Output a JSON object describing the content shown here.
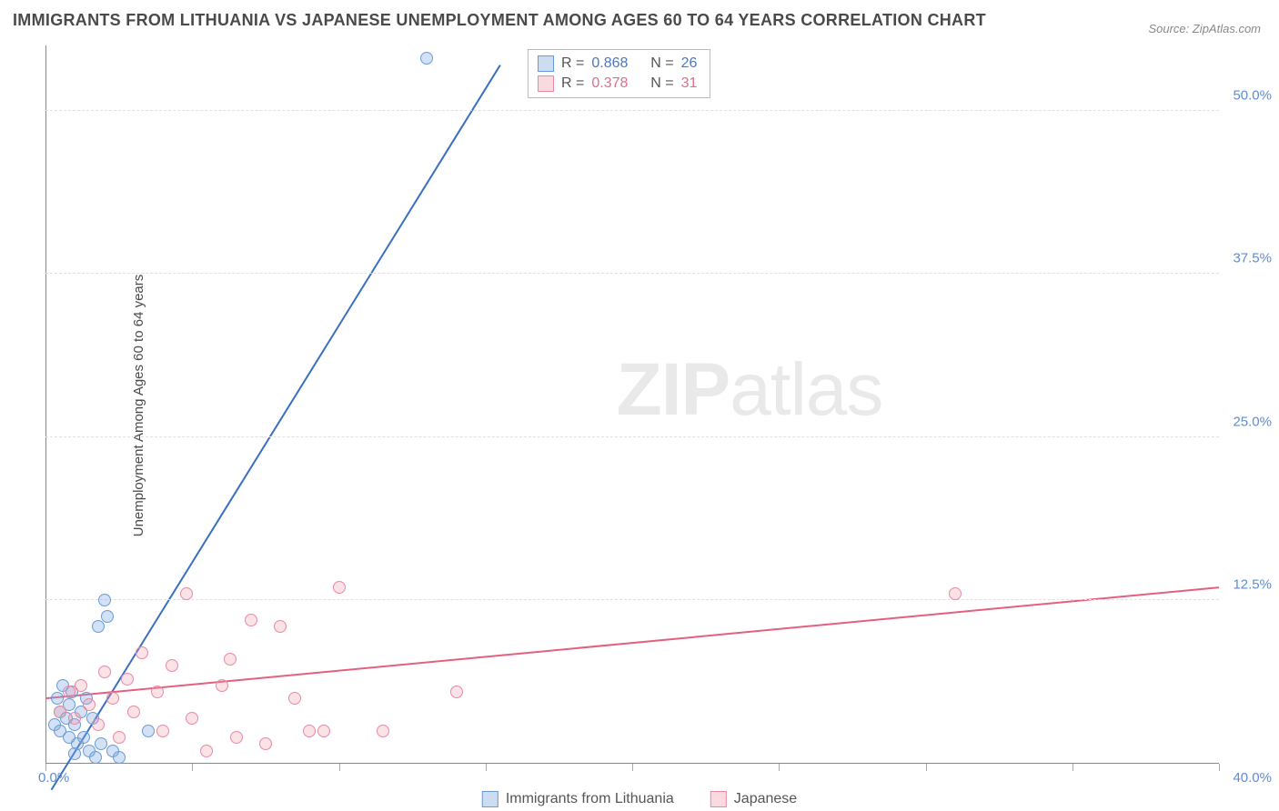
{
  "title": "IMMIGRANTS FROM LITHUANIA VS JAPANESE UNEMPLOYMENT AMONG AGES 60 TO 64 YEARS CORRELATION CHART",
  "source": "Source: ZipAtlas.com",
  "yaxis_label": "Unemployment Among Ages 60 to 64 years",
  "watermark_bold": "ZIP",
  "watermark_rest": "atlas",
  "chart": {
    "type": "scatter",
    "xlim": [
      0,
      40
    ],
    "ylim": [
      0,
      55
    ],
    "y_ticks": [
      12.5,
      25.0,
      37.5,
      50.0
    ],
    "y_tick_labels": [
      "12.5%",
      "25.0%",
      "37.5%",
      "50.0%"
    ],
    "x_ticks": [
      0,
      5,
      10,
      15,
      20,
      25,
      30,
      35,
      40
    ],
    "x_origin_label": "0.0%",
    "x_end_label": "40.0%",
    "background_color": "#ffffff",
    "grid_color": "#e0e0e0",
    "axis_color": "#888888",
    "marker_size": 14,
    "series": [
      {
        "key": "blue",
        "label": "Immigrants from Lithuania",
        "fill": "rgba(127,168,220,0.35)",
        "stroke": "#6a9bd8",
        "line_color": "#3b6fc2",
        "line_width": 2,
        "R": "0.868",
        "N": "26",
        "trend": {
          "x1": 0.2,
          "y1": -2.0,
          "x2": 15.5,
          "y2": 53.5
        },
        "points": [
          {
            "x": 0.3,
            "y": 3.0
          },
          {
            "x": 0.4,
            "y": 5.0
          },
          {
            "x": 0.5,
            "y": 4.0
          },
          {
            "x": 0.5,
            "y": 2.5
          },
          {
            "x": 0.6,
            "y": 6.0
          },
          {
            "x": 0.7,
            "y": 3.5
          },
          {
            "x": 0.8,
            "y": 4.5
          },
          {
            "x": 0.8,
            "y": 2.0
          },
          {
            "x": 0.9,
            "y": 5.5
          },
          {
            "x": 1.0,
            "y": 3.0
          },
          {
            "x": 1.0,
            "y": 0.8
          },
          {
            "x": 1.1,
            "y": 1.5
          },
          {
            "x": 1.2,
            "y": 4.0
          },
          {
            "x": 1.3,
            "y": 2.0
          },
          {
            "x": 1.4,
            "y": 5.0
          },
          {
            "x": 1.5,
            "y": 1.0
          },
          {
            "x": 1.6,
            "y": 3.5
          },
          {
            "x": 1.7,
            "y": 0.5
          },
          {
            "x": 1.8,
            "y": 10.5
          },
          {
            "x": 1.9,
            "y": 1.5
          },
          {
            "x": 2.0,
            "y": 12.5
          },
          {
            "x": 2.1,
            "y": 11.3
          },
          {
            "x": 2.3,
            "y": 1.0
          },
          {
            "x": 2.5,
            "y": 0.5
          },
          {
            "x": 3.5,
            "y": 2.5
          },
          {
            "x": 13.0,
            "y": 54.0
          }
        ]
      },
      {
        "key": "pink",
        "label": "Japanese",
        "fill": "rgba(240,150,170,0.28)",
        "stroke": "#e88aa2",
        "line_color": "#e3607f",
        "line_width": 2,
        "R": "0.378",
        "N": "31",
        "trend": {
          "x1": 0.0,
          "y1": 5.0,
          "x2": 40.0,
          "y2": 13.5
        },
        "points": [
          {
            "x": 0.5,
            "y": 4.0
          },
          {
            "x": 0.8,
            "y": 5.5
          },
          {
            "x": 1.0,
            "y": 3.5
          },
          {
            "x": 1.2,
            "y": 6.0
          },
          {
            "x": 1.5,
            "y": 4.5
          },
          {
            "x": 1.8,
            "y": 3.0
          },
          {
            "x": 2.0,
            "y": 7.0
          },
          {
            "x": 2.3,
            "y": 5.0
          },
          {
            "x": 2.5,
            "y": 2.0
          },
          {
            "x": 2.8,
            "y": 6.5
          },
          {
            "x": 3.0,
            "y": 4.0
          },
          {
            "x": 3.3,
            "y": 8.5
          },
          {
            "x": 3.8,
            "y": 5.5
          },
          {
            "x": 4.0,
            "y": 2.5
          },
          {
            "x": 4.3,
            "y": 7.5
          },
          {
            "x": 4.8,
            "y": 13.0
          },
          {
            "x": 5.0,
            "y": 3.5
          },
          {
            "x": 5.5,
            "y": 1.0
          },
          {
            "x": 6.0,
            "y": 6.0
          },
          {
            "x": 6.3,
            "y": 8.0
          },
          {
            "x": 6.5,
            "y": 2.0
          },
          {
            "x": 7.0,
            "y": 11.0
          },
          {
            "x": 7.5,
            "y": 1.5
          },
          {
            "x": 8.0,
            "y": 10.5
          },
          {
            "x": 8.5,
            "y": 5.0
          },
          {
            "x": 9.0,
            "y": 2.5
          },
          {
            "x": 9.5,
            "y": 2.5
          },
          {
            "x": 10.0,
            "y": 13.5
          },
          {
            "x": 11.5,
            "y": 2.5
          },
          {
            "x": 14.0,
            "y": 5.5
          },
          {
            "x": 31.0,
            "y": 13.0
          }
        ]
      }
    ]
  },
  "legend_stats": {
    "rows": [
      {
        "swatch": "blue",
        "r_label": "R =",
        "r_val": "0.868",
        "n_label": "N =",
        "n_val": "26"
      },
      {
        "swatch": "pink",
        "r_label": "R =",
        "r_val": "0.378",
        "n_label": "N =",
        "n_val": "31"
      }
    ]
  },
  "bottom_legend": {
    "items": [
      {
        "swatch": "blue",
        "label": "Immigrants from Lithuania"
      },
      {
        "swatch": "pink",
        "label": "Japanese"
      }
    ]
  }
}
